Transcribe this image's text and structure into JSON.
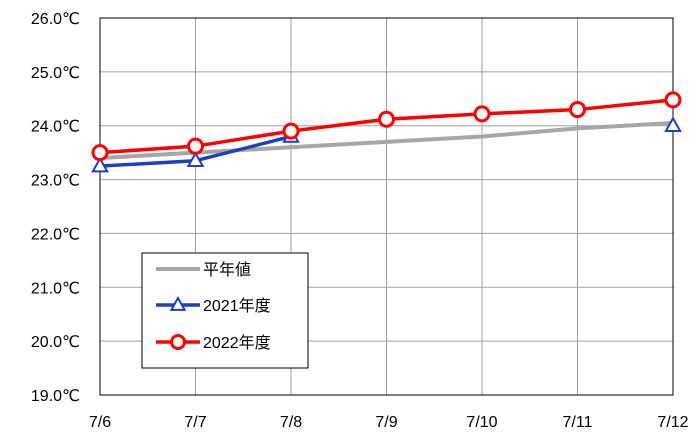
{
  "chart_data": {
    "type": "line",
    "categories": [
      "7/6",
      "7/7",
      "7/8",
      "7/9",
      "7/10",
      "7/11",
      "7/12"
    ],
    "ylim": [
      19.0,
      26.0
    ],
    "yticks": [
      "19.0℃",
      "20.0℃",
      "21.0℃",
      "22.0℃",
      "23.0℃",
      "24.0℃",
      "25.0℃",
      "26.0℃"
    ],
    "grid": true,
    "legend_position": "bottom-left",
    "series": [
      {
        "name": "平年値",
        "values": [
          23.4,
          23.5,
          23.6,
          23.7,
          23.8,
          23.95,
          24.05
        ],
        "color": "#a6a6a6",
        "marker": "none"
      },
      {
        "name": "2021年度",
        "values": [
          23.25,
          23.35,
          23.8,
          null,
          null,
          null,
          24.0
        ],
        "color": "#1f3fbf",
        "marker": "triangle"
      },
      {
        "name": "2022年度",
        "values": [
          23.5,
          23.62,
          23.9,
          24.12,
          24.22,
          24.3,
          24.48
        ],
        "color": "#ff0000",
        "marker": "circle"
      }
    ]
  }
}
